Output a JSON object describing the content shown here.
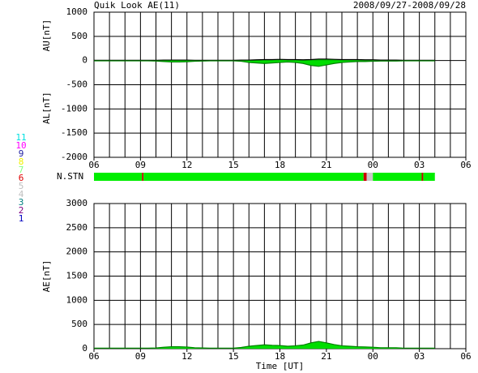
{
  "header": {
    "title": "Quik Look AE(11)",
    "date_range": "2008/09/27-2008/09/28"
  },
  "legend": [
    {
      "label": "11",
      "color": "#00e0e0"
    },
    {
      "label": "10",
      "color": "#ff00ff"
    },
    {
      "label": "9",
      "color": "#2020a0"
    },
    {
      "label": "8",
      "color": "#f0f000"
    },
    {
      "label": "7",
      "color": "#80ff80"
    },
    {
      "label": "6",
      "color": "#e00000"
    },
    {
      "label": "5",
      "color": "#c0c0c0"
    },
    {
      "label": "4",
      "color": "#c0c0c0"
    },
    {
      "label": "3",
      "color": "#008080"
    },
    {
      "label": "2",
      "color": "#800080"
    },
    {
      "label": "1",
      "color": "#0000c0"
    }
  ],
  "stations": {
    "label": "N.STN",
    "segments": [
      {
        "start": 6,
        "end": 9.1,
        "color": "#00ee00"
      },
      {
        "start": 9.1,
        "end": 9.2,
        "color": "#cc0000"
      },
      {
        "start": 9.2,
        "end": 23.4,
        "color": "#00ee00"
      },
      {
        "start": 23.4,
        "end": 23.6,
        "color": "#cc0000"
      },
      {
        "start": 23.6,
        "end": 24,
        "color": "#c8c8c8"
      },
      {
        "start": 24,
        "end": 27.15,
        "color": "#00ee00"
      },
      {
        "start": 27.15,
        "end": 27.25,
        "color": "#cc0000"
      },
      {
        "start": 27.25,
        "end": 28,
        "color": "#00ee00"
      }
    ]
  },
  "chart_data": [
    {
      "type": "area",
      "ylabels": [
        "AU[nT]",
        "AL[nT]"
      ],
      "x": [
        6,
        6.5,
        7,
        7.5,
        8,
        8.5,
        9,
        9.5,
        10,
        10.5,
        11,
        11.5,
        12,
        12.5,
        13,
        13.5,
        14,
        14.5,
        15,
        15.5,
        16,
        16.5,
        17,
        17.5,
        18,
        18.5,
        19,
        19.5,
        20,
        20.5,
        21,
        21.5,
        22,
        22.5,
        23,
        23.5,
        24,
        24.5,
        25,
        25.5,
        26,
        26.5,
        27,
        27.5,
        28
      ],
      "series": [
        {
          "name": "AU",
          "color": "#00dd00",
          "line_color": "#000000",
          "values": [
            5,
            5,
            5,
            5,
            5,
            5,
            5,
            5,
            5,
            10,
            10,
            10,
            10,
            5,
            5,
            5,
            5,
            5,
            5,
            10,
            10,
            15,
            20,
            20,
            25,
            20,
            20,
            15,
            20,
            30,
            30,
            25,
            20,
            20,
            20,
            15,
            15,
            10,
            10,
            10,
            5,
            5,
            5,
            5,
            5
          ]
        },
        {
          "name": "AL",
          "color": "#00dd00",
          "line_color": "#008000",
          "values": [
            -5,
            -5,
            -5,
            -5,
            -5,
            -5,
            -5,
            -5,
            -10,
            -20,
            -30,
            -30,
            -25,
            -15,
            -10,
            -5,
            -5,
            -5,
            -5,
            -15,
            -40,
            -50,
            -60,
            -50,
            -40,
            -30,
            -40,
            -60,
            -100,
            -120,
            -90,
            -60,
            -40,
            -30,
            -20,
            -20,
            -15,
            -10,
            -10,
            -10,
            -5,
            -5,
            -5,
            -5,
            -5
          ]
        }
      ],
      "xlim": [
        6,
        30
      ],
      "xticks": [
        {
          "value": 6,
          "label": "06"
        },
        {
          "value": 9,
          "label": "09"
        },
        12,
        15,
        18,
        21,
        {
          "value": 24,
          "label": "00"
        },
        {
          "value": 27,
          "label": "03"
        },
        {
          "value": 30,
          "label": "06"
        }
      ],
      "xgrid": [
        6,
        7,
        8,
        9,
        10,
        11,
        12,
        13,
        14,
        15,
        16,
        17,
        18,
        19,
        20,
        21,
        22,
        23,
        24,
        25,
        26,
        27,
        28,
        29,
        30
      ],
      "ylim": [
        -2000,
        1000
      ],
      "yticks": [
        1000,
        500,
        0,
        -500,
        -1000,
        -1500,
        -2000
      ]
    },
    {
      "type": "area",
      "ylabels": [
        "AE[nT]"
      ],
      "xlabel": "Time [UT]",
      "x": [
        6,
        6.5,
        7,
        7.5,
        8,
        8.5,
        9,
        9.5,
        10,
        10.5,
        11,
        11.5,
        12,
        12.5,
        13,
        13.5,
        14,
        14.5,
        15,
        15.5,
        16,
        16.5,
        17,
        17.5,
        18,
        18.5,
        19,
        19.5,
        20,
        20.5,
        21,
        21.5,
        22,
        22.5,
        23,
        23.5,
        24,
        24.5,
        25,
        25.5,
        26,
        26.5,
        27,
        27.5,
        28
      ],
      "series": [
        {
          "name": "AE",
          "color": "#00dd00",
          "line_color": "#008000",
          "values": [
            10,
            10,
            10,
            10,
            10,
            10,
            10,
            10,
            15,
            30,
            40,
            40,
            35,
            20,
            15,
            10,
            10,
            10,
            10,
            25,
            50,
            65,
            80,
            70,
            65,
            50,
            60,
            75,
            120,
            150,
            120,
            85,
            60,
            50,
            40,
            35,
            30,
            20,
            20,
            20,
            10,
            10,
            10,
            10,
            10
          ]
        }
      ],
      "xlim": [
        6,
        30
      ],
      "xticks": [
        {
          "value": 6,
          "label": "06"
        },
        {
          "value": 9,
          "label": "09"
        },
        12,
        15,
        18,
        21,
        {
          "value": 24,
          "label": "00"
        },
        {
          "value": 27,
          "label": "03"
        },
        {
          "value": 30,
          "label": "06"
        }
      ],
      "xgrid": [
        6,
        7,
        8,
        9,
        10,
        11,
        12,
        13,
        14,
        15,
        16,
        17,
        18,
        19,
        20,
        21,
        22,
        23,
        24,
        25,
        26,
        27,
        28,
        29,
        30
      ],
      "ylim": [
        0,
        3000
      ],
      "yticks": [
        3000,
        2500,
        2000,
        1500,
        1000,
        500,
        0
      ]
    }
  ]
}
